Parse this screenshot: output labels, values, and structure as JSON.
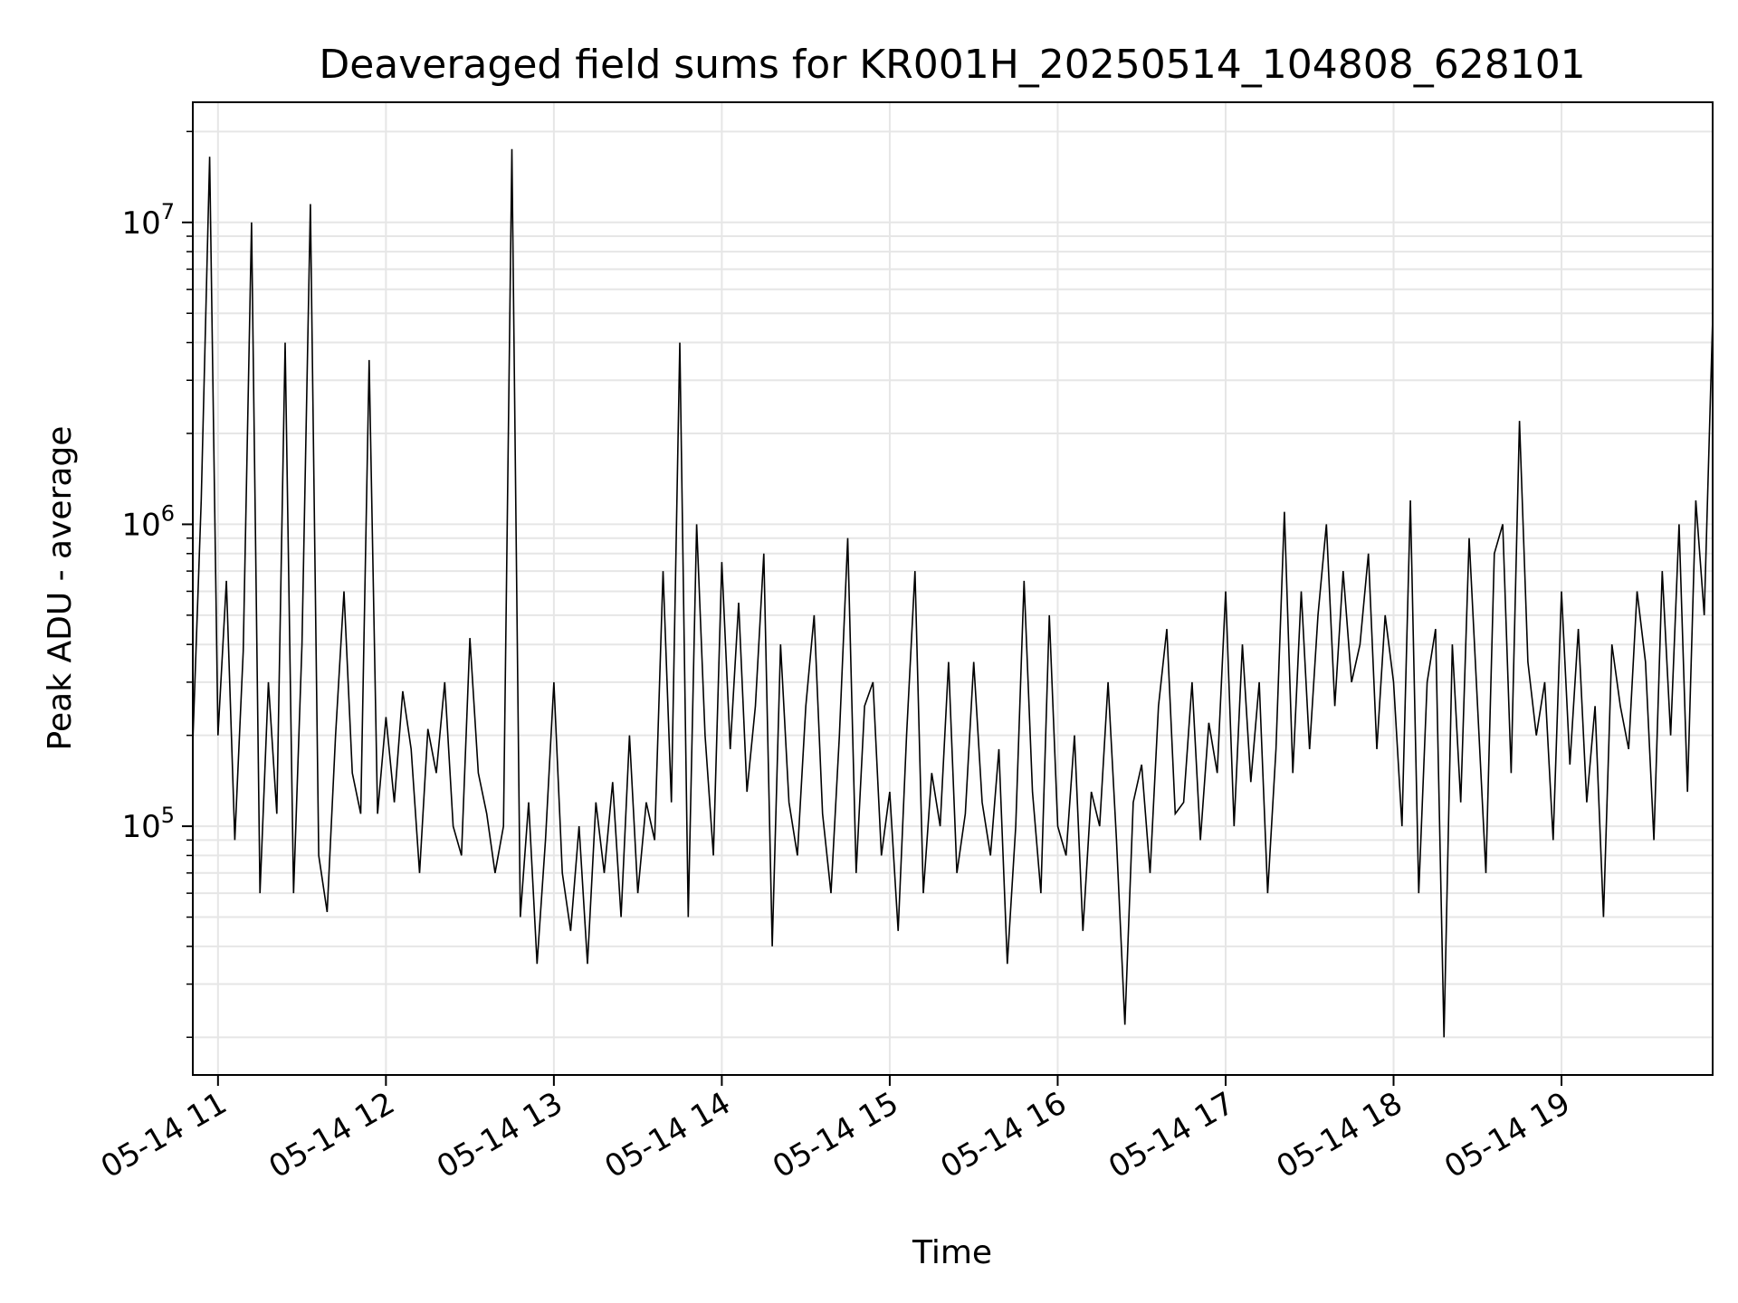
{
  "chart_data": {
    "type": "line",
    "title": "Deaveraged field sums for KR001H_20250514_104808_628101",
    "xlabel": "Time",
    "ylabel": "Peak ADU - average",
    "yscale": "log",
    "ylim": [
      15000,
      25000000
    ],
    "xlim": [
      "2025-05-14 10:51",
      "2025-05-14 19:54"
    ],
    "grid": true,
    "line_color": "#000000",
    "grid_color": "#e6e6e6",
    "x_ticks": [
      {
        "value": "2025-05-14 11:00",
        "label": "05-14 11"
      },
      {
        "value": "2025-05-14 12:00",
        "label": "05-14 12"
      },
      {
        "value": "2025-05-14 13:00",
        "label": "05-14 13"
      },
      {
        "value": "2025-05-14 14:00",
        "label": "05-14 14"
      },
      {
        "value": "2025-05-14 15:00",
        "label": "05-14 15"
      },
      {
        "value": "2025-05-14 16:00",
        "label": "05-14 16"
      },
      {
        "value": "2025-05-14 17:00",
        "label": "05-14 17"
      },
      {
        "value": "2025-05-14 18:00",
        "label": "05-14 18"
      },
      {
        "value": "2025-05-14 19:00",
        "label": "05-14 19"
      }
    ],
    "y_ticks": [
      {
        "value": 100000,
        "base": "10",
        "exp": "5"
      },
      {
        "value": 1000000,
        "base": "10",
        "exp": "6"
      },
      {
        "value": 10000000,
        "base": "10",
        "exp": "7"
      }
    ],
    "series": [
      {
        "x": [
          "2025-05-14 10:51",
          "2025-05-14 10:54",
          "2025-05-14 10:57",
          "2025-05-14 11:00",
          "2025-05-14 11:03",
          "2025-05-14 11:06",
          "2025-05-14 11:09",
          "2025-05-14 11:12",
          "2025-05-14 11:15",
          "2025-05-14 11:18",
          "2025-05-14 11:21",
          "2025-05-14 11:24",
          "2025-05-14 11:27",
          "2025-05-14 11:30",
          "2025-05-14 11:33",
          "2025-05-14 11:36",
          "2025-05-14 11:39",
          "2025-05-14 11:42",
          "2025-05-14 11:45",
          "2025-05-14 11:48",
          "2025-05-14 11:51",
          "2025-05-14 11:54",
          "2025-05-14 11:57",
          "2025-05-14 12:00",
          "2025-05-14 12:03",
          "2025-05-14 12:06",
          "2025-05-14 12:09",
          "2025-05-14 12:12",
          "2025-05-14 12:15",
          "2025-05-14 12:18",
          "2025-05-14 12:21",
          "2025-05-14 12:24",
          "2025-05-14 12:27",
          "2025-05-14 12:30",
          "2025-05-14 12:33",
          "2025-05-14 12:36",
          "2025-05-14 12:39",
          "2025-05-14 12:42",
          "2025-05-14 12:45",
          "2025-05-14 12:48",
          "2025-05-14 12:51",
          "2025-05-14 12:54",
          "2025-05-14 12:57",
          "2025-05-14 13:00",
          "2025-05-14 13:03",
          "2025-05-14 13:06",
          "2025-05-14 13:09",
          "2025-05-14 13:12",
          "2025-05-14 13:15",
          "2025-05-14 13:18",
          "2025-05-14 13:21",
          "2025-05-14 13:24",
          "2025-05-14 13:27",
          "2025-05-14 13:30",
          "2025-05-14 13:33",
          "2025-05-14 13:36",
          "2025-05-14 13:39",
          "2025-05-14 13:42",
          "2025-05-14 13:45",
          "2025-05-14 13:48",
          "2025-05-14 13:51",
          "2025-05-14 13:54",
          "2025-05-14 13:57",
          "2025-05-14 14:00",
          "2025-05-14 14:03",
          "2025-05-14 14:06",
          "2025-05-14 14:09",
          "2025-05-14 14:12",
          "2025-05-14 14:15",
          "2025-05-14 14:18",
          "2025-05-14 14:21",
          "2025-05-14 14:24",
          "2025-05-14 14:27",
          "2025-05-14 14:30",
          "2025-05-14 14:33",
          "2025-05-14 14:36",
          "2025-05-14 14:39",
          "2025-05-14 14:42",
          "2025-05-14 14:45",
          "2025-05-14 14:48",
          "2025-05-14 14:51",
          "2025-05-14 14:54",
          "2025-05-14 14:57",
          "2025-05-14 15:00",
          "2025-05-14 15:03",
          "2025-05-14 15:06",
          "2025-05-14 15:09",
          "2025-05-14 15:12",
          "2025-05-14 15:15",
          "2025-05-14 15:18",
          "2025-05-14 15:21",
          "2025-05-14 15:24",
          "2025-05-14 15:27",
          "2025-05-14 15:30",
          "2025-05-14 15:33",
          "2025-05-14 15:36",
          "2025-05-14 15:39",
          "2025-05-14 15:42",
          "2025-05-14 15:45",
          "2025-05-14 15:48",
          "2025-05-14 15:51",
          "2025-05-14 15:54",
          "2025-05-14 15:57",
          "2025-05-14 16:00",
          "2025-05-14 16:03",
          "2025-05-14 16:06",
          "2025-05-14 16:09",
          "2025-05-14 16:12",
          "2025-05-14 16:15",
          "2025-05-14 16:18",
          "2025-05-14 16:21",
          "2025-05-14 16:24",
          "2025-05-14 16:27",
          "2025-05-14 16:30",
          "2025-05-14 16:33",
          "2025-05-14 16:36",
          "2025-05-14 16:39",
          "2025-05-14 16:42",
          "2025-05-14 16:45",
          "2025-05-14 16:48",
          "2025-05-14 16:51",
          "2025-05-14 16:54",
          "2025-05-14 16:57",
          "2025-05-14 17:00",
          "2025-05-14 17:03",
          "2025-05-14 17:06",
          "2025-05-14 17:09",
          "2025-05-14 17:12",
          "2025-05-14 17:15",
          "2025-05-14 17:18",
          "2025-05-14 17:21",
          "2025-05-14 17:24",
          "2025-05-14 17:27",
          "2025-05-14 17:30",
          "2025-05-14 17:33",
          "2025-05-14 17:36",
          "2025-05-14 17:39",
          "2025-05-14 17:42",
          "2025-05-14 17:45",
          "2025-05-14 17:48",
          "2025-05-14 17:51",
          "2025-05-14 17:54",
          "2025-05-14 17:57",
          "2025-05-14 18:00",
          "2025-05-14 18:03",
          "2025-05-14 18:06",
          "2025-05-14 18:09",
          "2025-05-14 18:12",
          "2025-05-14 18:15",
          "2025-05-14 18:18",
          "2025-05-14 18:21",
          "2025-05-14 18:24",
          "2025-05-14 18:27",
          "2025-05-14 18:30",
          "2025-05-14 18:33",
          "2025-05-14 18:36",
          "2025-05-14 18:39",
          "2025-05-14 18:42",
          "2025-05-14 18:45",
          "2025-05-14 18:48",
          "2025-05-14 18:51",
          "2025-05-14 18:54",
          "2025-05-14 18:57",
          "2025-05-14 19:00",
          "2025-05-14 19:03",
          "2025-05-14 19:06",
          "2025-05-14 19:09",
          "2025-05-14 19:12",
          "2025-05-14 19:15",
          "2025-05-14 19:18",
          "2025-05-14 19:21",
          "2025-05-14 19:24",
          "2025-05-14 19:27",
          "2025-05-14 19:30",
          "2025-05-14 19:33",
          "2025-05-14 19:36",
          "2025-05-14 19:39",
          "2025-05-14 19:42",
          "2025-05-14 19:45",
          "2025-05-14 19:48",
          "2025-05-14 19:51",
          "2025-05-14 19:54"
        ],
        "y": [
          190000,
          1200000,
          16500000,
          200000,
          650000,
          90000,
          380000,
          10000000,
          60000,
          300000,
          110000,
          4000000,
          60000,
          400000,
          11500000,
          80000,
          52000,
          200000,
          600000,
          150000,
          110000,
          3500000,
          110000,
          230000,
          120000,
          280000,
          180000,
          70000,
          210000,
          150000,
          300000,
          100000,
          80000,
          420000,
          150000,
          110000,
          70000,
          100000,
          17500000,
          50000,
          120000,
          35000,
          90000,
          300000,
          70000,
          45000,
          100000,
          35000,
          120000,
          70000,
          140000,
          50000,
          200000,
          60000,
          120000,
          90000,
          700000,
          120000,
          4000000,
          50000,
          1000000,
          200000,
          80000,
          750000,
          180000,
          550000,
          130000,
          250000,
          800000,
          40000,
          400000,
          120000,
          80000,
          250000,
          500000,
          110000,
          60000,
          200000,
          900000,
          70000,
          250000,
          300000,
          80000,
          130000,
          45000,
          200000,
          700000,
          60000,
          150000,
          100000,
          350000,
          70000,
          110000,
          350000,
          120000,
          80000,
          180000,
          35000,
          100000,
          650000,
          130000,
          60000,
          500000,
          100000,
          80000,
          200000,
          45000,
          130000,
          100000,
          300000,
          90000,
          22000,
          120000,
          160000,
          70000,
          250000,
          450000,
          110000,
          120000,
          300000,
          90000,
          220000,
          150000,
          600000,
          100000,
          400000,
          140000,
          300000,
          60000,
          180000,
          1100000,
          150000,
          600000,
          180000,
          500000,
          1000000,
          250000,
          700000,
          300000,
          400000,
          800000,
          180000,
          500000,
          300000,
          100000,
          1200000,
          60000,
          300000,
          450000,
          20000,
          400000,
          120000,
          900000,
          250000,
          70000,
          800000,
          1000000,
          150000,
          2200000,
          350000,
          200000,
          300000,
          90000,
          600000,
          160000,
          450000,
          120000,
          250000,
          50000,
          400000,
          250000,
          180000,
          600000,
          350000,
          90000,
          700000,
          200000,
          1000000,
          130000,
          1200000,
          500000,
          4800000
        ]
      }
    ]
  }
}
